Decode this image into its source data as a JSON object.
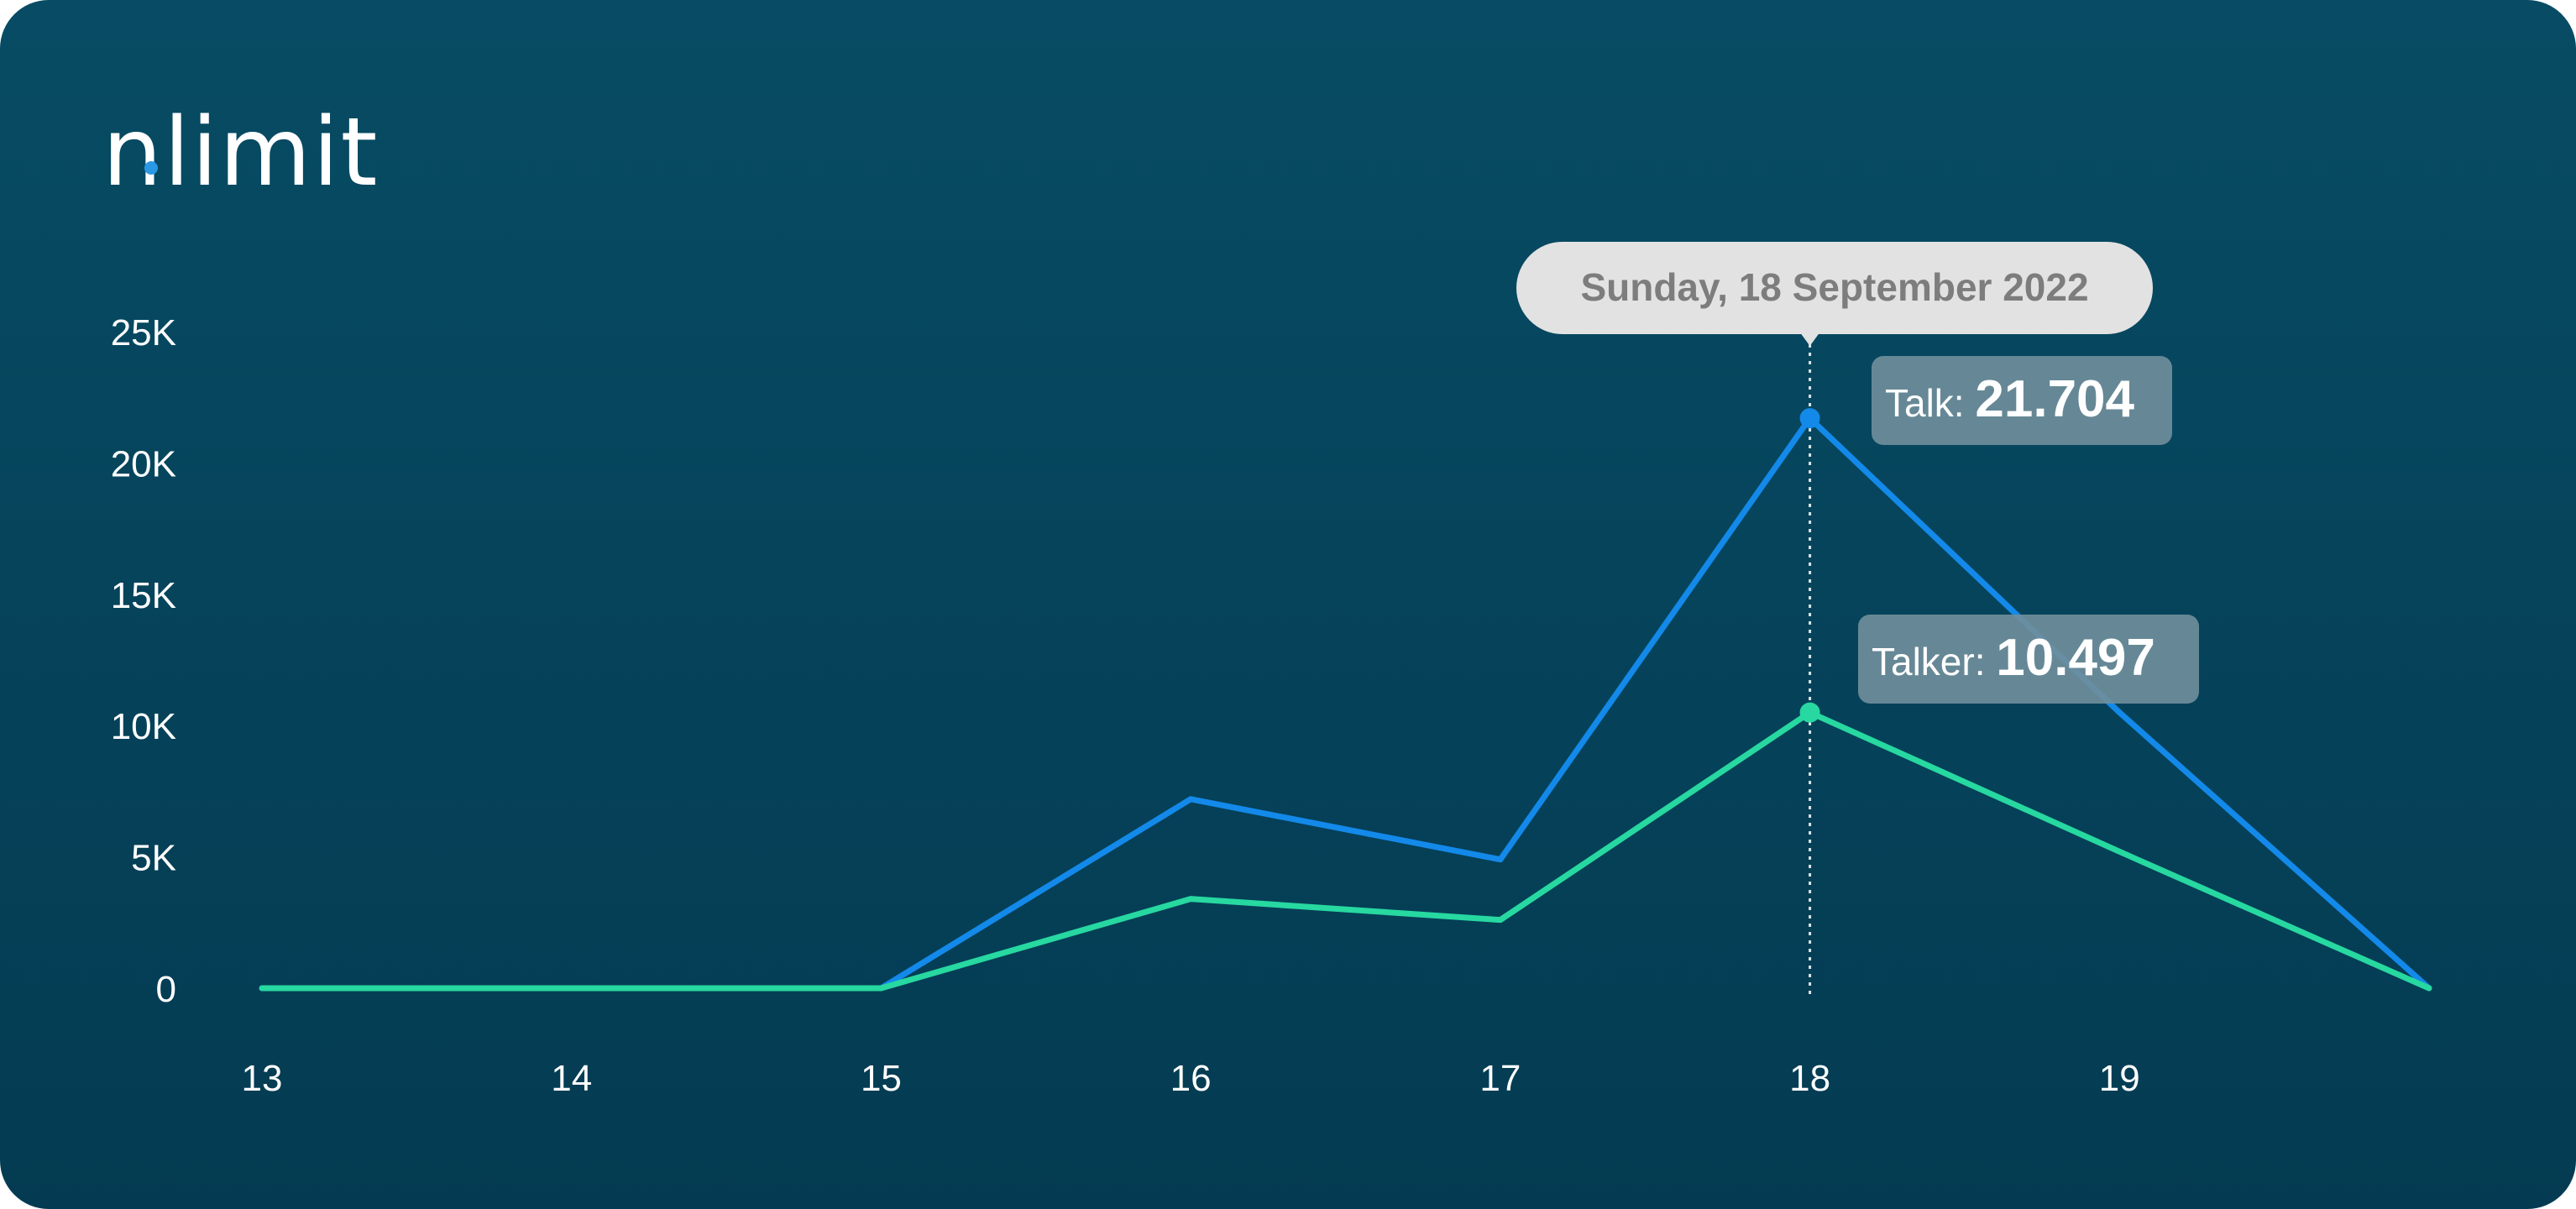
{
  "brand": {
    "logo_text": "nlimit",
    "dot_color": "#2b98e6"
  },
  "colors": {
    "background_top": "#074c64",
    "background_bottom": "#043b52",
    "talk": "#1389ea",
    "talker": "#27d8a0",
    "tooltip_date_bg": "#e2e2e2",
    "tooltip_value_bg": "#6f8e9b"
  },
  "chart_data": {
    "type": "line",
    "x": [
      13,
      14,
      15,
      16,
      17,
      18,
      19,
      20
    ],
    "x_tick_labels": [
      "13",
      "14",
      "15",
      "16",
      "17",
      "18",
      "19"
    ],
    "y_tick_labels": [
      "0",
      "5K",
      "10K",
      "15K",
      "20K",
      "25K"
    ],
    "y_ticks": [
      0,
      5000,
      10000,
      15000,
      20000,
      25000
    ],
    "xlim": [
      13,
      20
    ],
    "ylim": [
      0,
      25000
    ],
    "grid": false,
    "series": [
      {
        "name": "Talk",
        "color": "#1389ea",
        "values": [
          0,
          0,
          0,
          7200,
          4900,
          21704,
          10500,
          0
        ]
      },
      {
        "name": "Talker",
        "color": "#27d8a0",
        "values": [
          0,
          0,
          0,
          3400,
          2600,
          10497,
          5200,
          0
        ]
      }
    ],
    "tooltip": {
      "x": 18,
      "date": "Sunday, 18 September 2022",
      "items": [
        {
          "label": "Talk:",
          "value": "21.704"
        },
        {
          "label": "Talker:",
          "value": "10.497"
        }
      ]
    }
  }
}
